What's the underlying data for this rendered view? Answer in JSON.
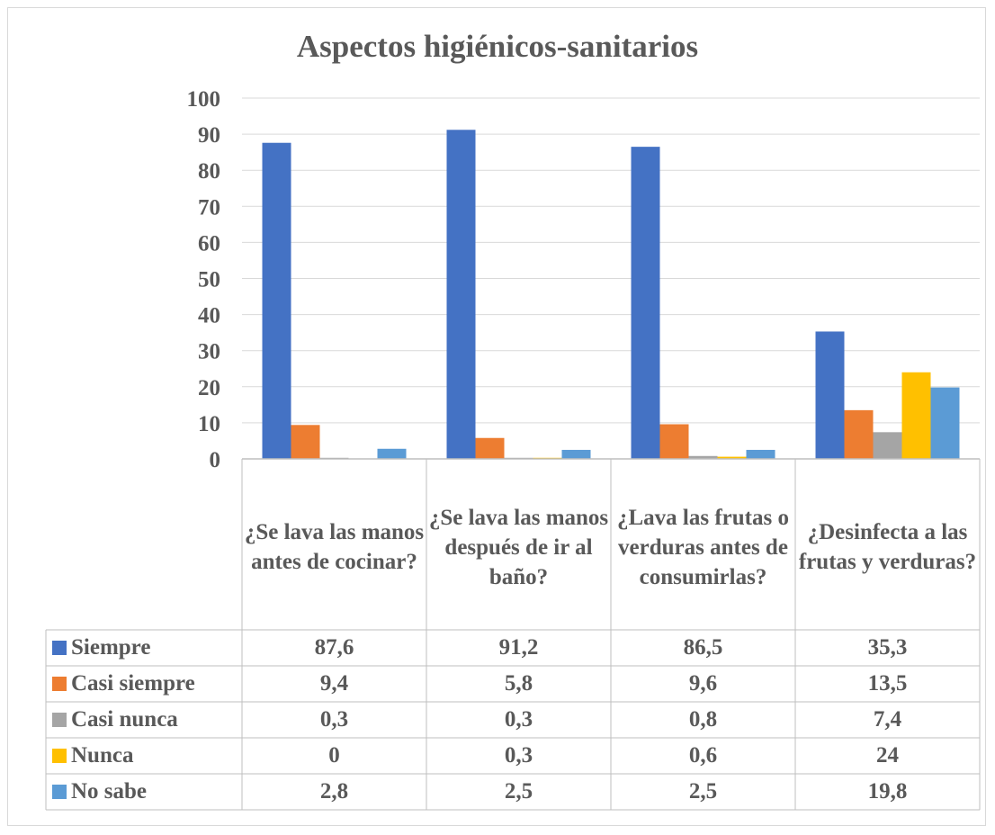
{
  "chart_data": {
    "type": "bar",
    "title": "Aspectos higiénicos-sanitarios",
    "categories": [
      "¿Se lava las manos antes de cocinar?",
      "¿Se lava las manos después de ir al baño?",
      "¿Lava las frutas o verduras antes de consumirlas?",
      "¿Desinfecta a las frutas y verduras?"
    ],
    "series": [
      {
        "name": "Siempre",
        "color": "#4472c4",
        "values": [
          87.6,
          91.2,
          86.5,
          35.3
        ],
        "labels": [
          "87,6",
          "91,2",
          "86,5",
          "35,3"
        ]
      },
      {
        "name": "Casi siempre",
        "color": "#ed7d31",
        "values": [
          9.4,
          5.8,
          9.6,
          13.5
        ],
        "labels": [
          "9,4",
          "5,8",
          "9,6",
          "13,5"
        ]
      },
      {
        "name": "Casi nunca",
        "color": "#a5a5a5",
        "values": [
          0.3,
          0.3,
          0.8,
          7.4
        ],
        "labels": [
          "0,3",
          "0,3",
          "0,8",
          "7,4"
        ]
      },
      {
        "name": "Nunca",
        "color": "#ffc000",
        "values": [
          0,
          0.3,
          0.6,
          24
        ],
        "labels": [
          "0",
          "0,3",
          "0,6",
          "24"
        ]
      },
      {
        "name": "No sabe",
        "color": "#5b9bd5",
        "values": [
          2.8,
          2.5,
          2.5,
          19.8
        ],
        "labels": [
          "2,8",
          "2,5",
          "2,5",
          "19,8"
        ]
      }
    ],
    "ylim": [
      0,
      100
    ],
    "yticks": [
      0,
      10,
      20,
      30,
      40,
      50,
      60,
      70,
      80,
      90,
      100
    ],
    "grid": true,
    "legend": "data-table"
  }
}
